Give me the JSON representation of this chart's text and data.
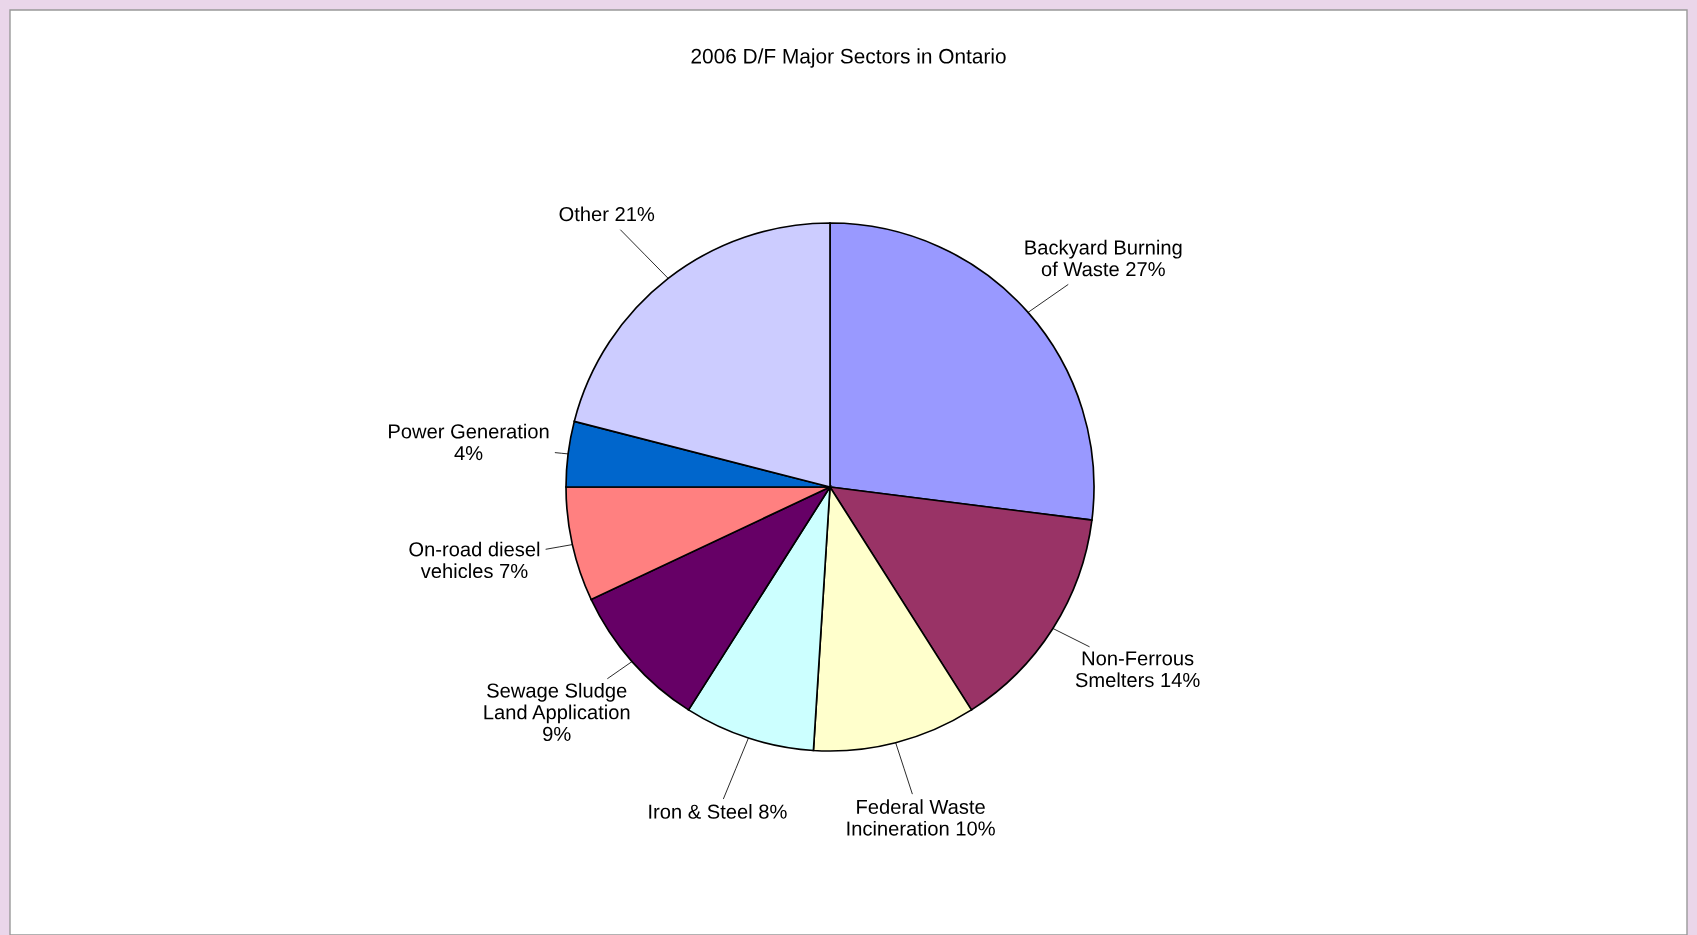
{
  "chart_data": {
    "type": "pie",
    "title": "2006 D/F Major Sectors in Ontario",
    "categories": [
      "Backyard Burning\nof Waste",
      "Non-Ferrous\nSmelters ",
      "Federal Waste\nIncineration",
      "Iron & Steel",
      "Sewage Sludge\nLand Application\n",
      "On-road diesel\nvehicles",
      "Power Generation\n",
      "Other "
    ],
    "values": [
      27,
      14,
      10,
      8,
      9,
      7,
      4,
      21
    ],
    "value_labels": [
      "27%",
      "14%",
      "10%",
      "8%",
      "9%",
      "7%",
      "4%",
      "21%"
    ],
    "colors": [
      "#9999ff",
      "#993366",
      "#ffffcc",
      "#ccffff",
      "#660066",
      "#ff8080",
      "#0066cc",
      "#ccccff"
    ],
    "legend": false
  }
}
